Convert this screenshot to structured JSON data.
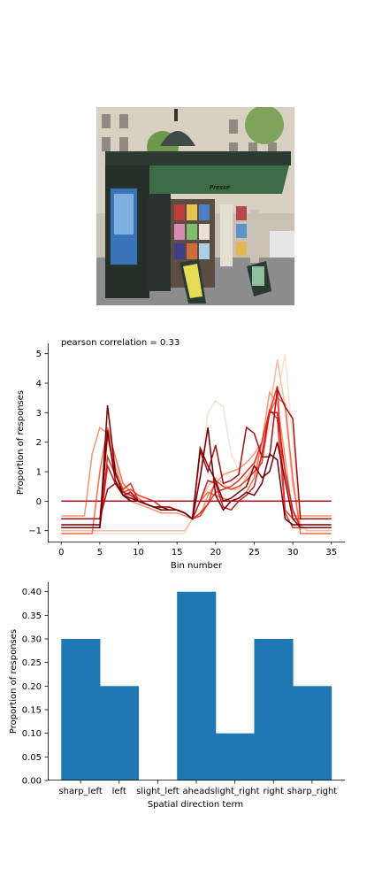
{
  "photo": {
    "icon": "kiosk-photo",
    "sign_text": "Presse"
  },
  "chart_data": [
    {
      "type": "line",
      "title": "pearson correlation = 0.33",
      "xlabel": "Bin number",
      "ylabel": "Proportion of responses",
      "xlim": [
        -1.75,
        36.75
      ],
      "ylim": [
        -1.37,
        5.35
      ],
      "xticks": [
        0,
        5,
        10,
        15,
        20,
        25,
        30,
        35
      ],
      "yticks": [
        -1,
        0,
        1,
        2,
        3,
        4,
        5
      ],
      "grid": false,
      "legend": "none",
      "colormap": "Reds",
      "x": [
        0,
        1,
        2,
        3,
        4,
        5,
        6,
        7,
        8,
        9,
        10,
        11,
        12,
        13,
        14,
        15,
        16,
        17,
        18,
        19,
        20,
        21,
        22,
        23,
        24,
        25,
        26,
        27,
        28,
        29,
        30,
        31,
        32,
        33,
        34,
        35
      ],
      "series": [
        {
          "color": "#fde0d2",
          "values": [
            -1.1,
            -1.1,
            -1.1,
            -1.1,
            -1.1,
            -1.1,
            -1.1,
            -1.1,
            -1.1,
            -1.1,
            -1.1,
            -1.1,
            -1.1,
            -1.1,
            -1.1,
            -1.1,
            -1.1,
            -0.6,
            1.0,
            3.0,
            3.4,
            3.2,
            1.6,
            1.0,
            0.8,
            1.0,
            1.5,
            2.5,
            3.5,
            5.0,
            2.0,
            -0.8,
            -1.1,
            -1.1,
            -1.1,
            -1.1
          ]
        },
        {
          "color": "#fcbba1",
          "values": [
            -1.0,
            -1.0,
            -1.0,
            -1.0,
            -1.0,
            -1.0,
            -1.0,
            -1.0,
            -1.0,
            -1.0,
            -1.0,
            -1.0,
            -1.0,
            -1.0,
            -1.0,
            -1.0,
            -1.0,
            -0.6,
            0.0,
            0.5,
            0.8,
            0.6,
            0.4,
            0.4,
            0.8,
            1.2,
            2.0,
            3.0,
            4.8,
            3.2,
            0.5,
            -0.8,
            -1.0,
            -1.0,
            -1.0,
            -1.0
          ]
        },
        {
          "color": "#fc9272",
          "values": [
            -0.5,
            -0.5,
            -0.5,
            -0.5,
            1.6,
            2.5,
            2.3,
            1.2,
            0.4,
            0.0,
            -0.1,
            -0.2,
            -0.3,
            -0.4,
            -0.4,
            -0.4,
            -0.5,
            -0.6,
            -0.5,
            0.2,
            0.6,
            0.9,
            1.0,
            1.1,
            1.3,
            1.6,
            2.0,
            3.7,
            3.3,
            1.5,
            -0.5,
            -0.5,
            -0.5,
            -0.5,
            -0.5,
            -0.5
          ]
        },
        {
          "color": "#fb6a4a",
          "values": [
            -1.1,
            -1.1,
            -1.1,
            -1.1,
            -1.1,
            1.0,
            2.5,
            1.5,
            0.6,
            0.3,
            0.1,
            -0.1,
            -0.2,
            -0.3,
            -0.3,
            -0.3,
            -0.4,
            -0.6,
            0.0,
            0.3,
            0.2,
            0.1,
            0.0,
            0.1,
            0.3,
            0.8,
            2.0,
            3.0,
            3.5,
            3.3,
            0.8,
            -1.1,
            -1.1,
            -1.1,
            -1.1,
            -1.1
          ]
        },
        {
          "color": "#ef3b2c",
          "values": [
            -0.6,
            -0.6,
            -0.6,
            -0.6,
            -0.6,
            -0.6,
            2.2,
            1.0,
            0.3,
            0.4,
            0.2,
            0.1,
            0.0,
            -0.2,
            -0.2,
            -0.3,
            -0.4,
            -0.6,
            -0.5,
            -0.1,
            0.7,
            0.5,
            0.4,
            0.5,
            0.7,
            1.0,
            1.3,
            3.0,
            3.9,
            -0.3,
            -0.6,
            -0.6,
            -0.6,
            -0.6,
            -0.6,
            -0.6
          ]
        },
        {
          "color": "#e03125",
          "values": [
            -0.9,
            -0.9,
            -0.9,
            -0.9,
            -0.9,
            -0.9,
            1.5,
            0.9,
            0.4,
            0.6,
            0.0,
            0.0,
            0.0,
            -0.2,
            -0.2,
            -0.3,
            -0.4,
            -0.6,
            -0.4,
            -0.1,
            0.3,
            0.4,
            0.5,
            0.7,
            1.0,
            1.3,
            2.0,
            3.1,
            2.8,
            -0.4,
            -0.9,
            -0.9,
            -0.9,
            -0.9,
            -0.9,
            -0.9
          ]
        },
        {
          "color": "#cb181d",
          "values": [
            -0.9,
            -0.9,
            -0.9,
            -0.9,
            -0.9,
            -0.9,
            1.2,
            0.6,
            0.3,
            0.2,
            0.0,
            -0.1,
            -0.2,
            -0.2,
            -0.2,
            -0.3,
            -0.4,
            -0.6,
            0.0,
            0.7,
            0.6,
            -0.2,
            -0.3,
            0.0,
            0.2,
            0.5,
            1.6,
            3.0,
            3.0,
            1.0,
            -0.3,
            -0.9,
            -0.9,
            -0.9,
            -0.9,
            -0.9
          ]
        },
        {
          "color": "#b5121b",
          "values": [
            0.0,
            0.0,
            0.0,
            0.0,
            0.0,
            0.0,
            0.0,
            0.0,
            0.0,
            0.0,
            0.0,
            0.0,
            0.0,
            0.0,
            0.0,
            0.0,
            0.0,
            0.0,
            0.0,
            0.0,
            0.0,
            0.0,
            0.0,
            0.0,
            0.0,
            0.0,
            0.0,
            0.0,
            0.0,
            0.0,
            0.0,
            0.0,
            0.0,
            0.0,
            0.0,
            0.0
          ]
        },
        {
          "color": "#a50f15",
          "values": [
            -0.6,
            -0.6,
            -0.6,
            -0.6,
            -0.6,
            -0.6,
            0.4,
            0.6,
            0.2,
            0.3,
            0.0,
            -0.1,
            -0.2,
            -0.3,
            -0.3,
            -0.3,
            -0.4,
            -0.6,
            1.7,
            1.0,
            1.9,
            0.6,
            0.7,
            0.9,
            2.5,
            2.3,
            1.5,
            1.5,
            3.8,
            3.2,
            2.8,
            -0.6,
            -0.6,
            -0.6,
            -0.6,
            -0.6
          ]
        },
        {
          "color": "#7f0000",
          "values": [
            -0.9,
            -0.9,
            -0.9,
            -0.9,
            -0.9,
            -0.9,
            3.25,
            1.0,
            0.2,
            0.1,
            0.0,
            -0.1,
            -0.2,
            -0.3,
            -0.3,
            -0.3,
            -0.4,
            -0.6,
            1.8,
            1.2,
            0.7,
            0.0,
            0.1,
            0.3,
            0.5,
            1.2,
            0.8,
            1.0,
            2.0,
            0.7,
            -0.6,
            -0.9,
            -0.9,
            -0.9,
            -0.9,
            -0.9
          ]
        },
        {
          "color": "#67000d",
          "values": [
            -0.8,
            -0.8,
            -0.8,
            -0.8,
            -0.8,
            -0.8,
            2.4,
            0.7,
            0.2,
            0.0,
            0.0,
            -0.1,
            -0.2,
            -0.2,
            -0.3,
            -0.3,
            -0.4,
            -0.6,
            0.8,
            2.5,
            0.2,
            -0.3,
            0.0,
            0.1,
            0.3,
            0.2,
            0.6,
            1.6,
            1.4,
            -0.6,
            -0.8,
            -0.8,
            -0.8,
            -0.8,
            -0.8,
            -0.8
          ]
        }
      ]
    },
    {
      "type": "bar",
      "title": "",
      "xlabel": "Spatial direction term",
      "ylabel": "Proportion of responses",
      "ylim": [
        0,
        0.42
      ],
      "yticks": [
        "0.00",
        "0.05",
        "0.10",
        "0.15",
        "0.20",
        "0.25",
        "0.30",
        "0.35",
        "0.40"
      ],
      "categories": [
        "sharp_left",
        "left",
        "slight_left",
        "ahead",
        "slight_right",
        "right",
        "sharp_right"
      ],
      "values": [
        0.3,
        0.2,
        0.0,
        0.4,
        0.1,
        0.3,
        0.2
      ],
      "color": "#1f77b4",
      "grid": false,
      "legend": "none"
    }
  ]
}
